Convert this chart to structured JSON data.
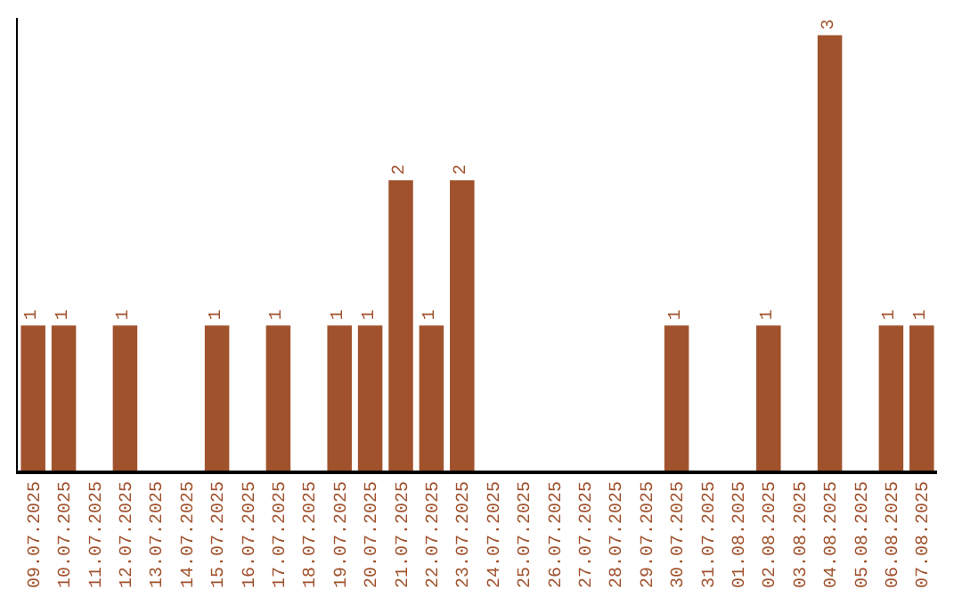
{
  "chart_data": {
    "type": "bar",
    "categories": [
      "09.07.2025",
      "10.07.2025",
      "11.07.2025",
      "12.07.2025",
      "13.07.2025",
      "14.07.2025",
      "15.07.2025",
      "16.07.2025",
      "17.07.2025",
      "18.07.2025",
      "19.07.2025",
      "20.07.2025",
      "21.07.2025",
      "22.07.2025",
      "23.07.2025",
      "24.07.2025",
      "25.07.2025",
      "26.07.2025",
      "27.07.2025",
      "28.07.2025",
      "29.07.2025",
      "30.07.2025",
      "31.07.2025",
      "01.08.2025",
      "02.08.2025",
      "03.08.2025",
      "04.08.2025",
      "05.08.2025",
      "06.08.2025",
      "07.08.2025"
    ],
    "values": [
      1,
      1,
      0,
      1,
      0,
      0,
      1,
      0,
      1,
      0,
      1,
      1,
      2,
      1,
      2,
      0,
      0,
      0,
      0,
      0,
      0,
      1,
      0,
      0,
      1,
      0,
      3,
      0,
      1,
      1
    ],
    "value_labels": [
      "1",
      "1",
      null,
      "1",
      null,
      null,
      "1",
      null,
      "1",
      null,
      "1",
      "1",
      "2",
      "1",
      "2",
      null,
      null,
      null,
      null,
      null,
      null,
      "1",
      null,
      null,
      "1",
      null,
      "3",
      null,
      "1",
      "1"
    ],
    "color": "#a0522d",
    "ylim": [
      0,
      3.12
    ],
    "tick_labels": "x",
    "legend": false
  }
}
